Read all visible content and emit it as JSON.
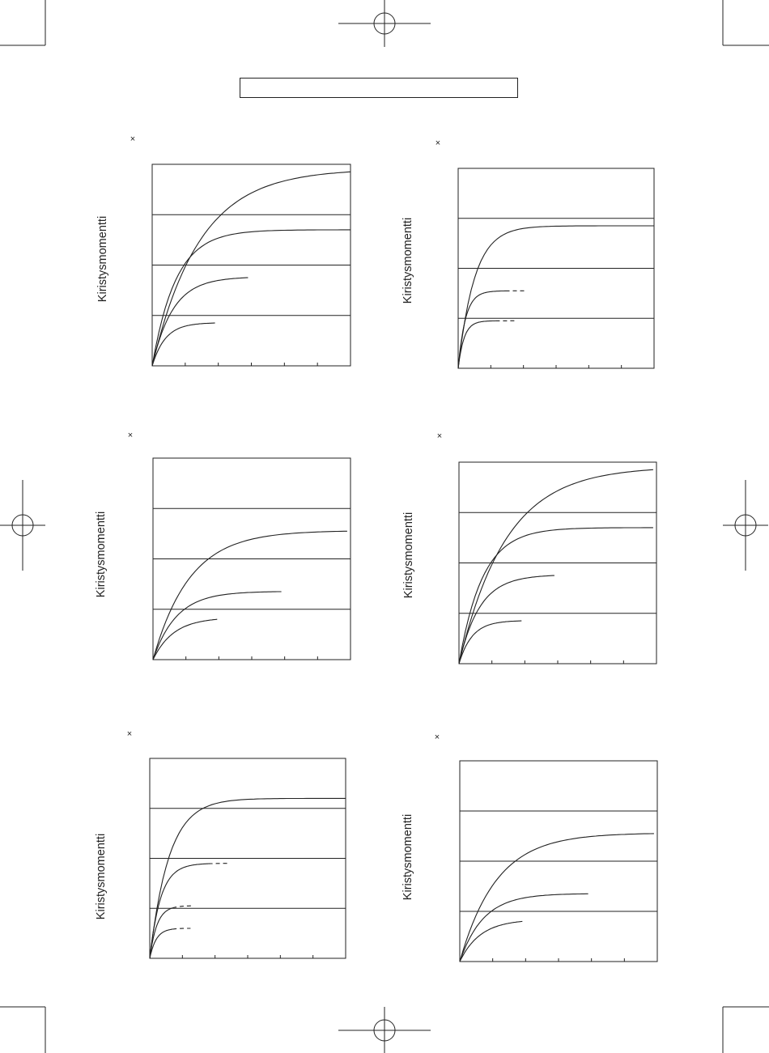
{
  "page": {
    "title_box_text": "",
    "colors": {
      "ink": "#222222",
      "background": "#ffffff"
    }
  },
  "chart_data": [
    {
      "type": "line",
      "position": "top-left",
      "ylabel": "Kiristysmomentti",
      "multiplier_mark": "×",
      "xlim": [
        0,
        6
      ],
      "ylim": [
        0,
        4
      ],
      "grid": "horizontal",
      "series": [
        {
          "x_end": 6.0,
          "y_end": 3.85,
          "k": 0.7,
          "dashed_from": null
        },
        {
          "x_end": 6.0,
          "y_end": 2.7,
          "k": 1.4,
          "dashed_from": null
        },
        {
          "x_end": 2.9,
          "y_end": 1.75,
          "k": 1.6,
          "dashed_from": null
        },
        {
          "x_end": 1.9,
          "y_end": 0.85,
          "k": 2.5,
          "dashed_from": null
        }
      ]
    },
    {
      "type": "line",
      "position": "top-right",
      "ylabel": "Kiristysmomentti",
      "multiplier_mark": "×",
      "xlim": [
        0,
        6
      ],
      "ylim": [
        0,
        4
      ],
      "grid": "horizontal",
      "series": [
        {
          "x_end": 6.0,
          "y_end": 2.85,
          "k": 2.0,
          "dashed_from": null
        },
        {
          "x_end": 2.1,
          "y_end": 1.55,
          "k": 4.5,
          "dashed_from": 1.45
        },
        {
          "x_end": 1.8,
          "y_end": 0.95,
          "k": 5.5,
          "dashed_from": 1.15
        }
      ]
    },
    {
      "type": "line",
      "position": "middle-left",
      "ylabel": "Kiristysmomentti",
      "multiplier_mark": "×",
      "xlim": [
        0,
        6
      ],
      "ylim": [
        0,
        4
      ],
      "grid": "horizontal",
      "series": [
        {
          "x_end": 5.9,
          "y_end": 2.55,
          "k": 0.9,
          "dashed_from": null
        },
        {
          "x_end": 3.9,
          "y_end": 1.35,
          "k": 1.4,
          "dashed_from": null
        },
        {
          "x_end": 1.95,
          "y_end": 0.8,
          "k": 1.6,
          "dashed_from": null
        }
      ]
    },
    {
      "type": "line",
      "position": "middle-right",
      "ylabel": "Kiristysmomentti",
      "multiplier_mark": "×",
      "xlim": [
        0,
        6
      ],
      "ylim": [
        0,
        4
      ],
      "grid": "horizontal",
      "series": [
        {
          "x_end": 5.9,
          "y_end": 3.85,
          "k": 0.7,
          "dashed_from": null
        },
        {
          "x_end": 5.9,
          "y_end": 2.7,
          "k": 1.4,
          "dashed_from": null
        },
        {
          "x_end": 2.9,
          "y_end": 1.75,
          "k": 1.6,
          "dashed_from": null
        },
        {
          "x_end": 1.9,
          "y_end": 0.85,
          "k": 2.5,
          "dashed_from": null
        }
      ]
    },
    {
      "type": "line",
      "position": "bottom-left",
      "ylabel": "Kiristysmomentti",
      "multiplier_mark": "×",
      "xlim": [
        0,
        6
      ],
      "ylim": [
        0,
        4
      ],
      "grid": "horizontal",
      "series": [
        {
          "x_end": 6.0,
          "y_end": 3.2,
          "k": 1.7,
          "dashed_from": null
        },
        {
          "x_end": 2.4,
          "y_end": 1.9,
          "k": 3.0,
          "dashed_from": 1.8
        },
        {
          "x_end": 1.3,
          "y_end": 1.05,
          "k": 4.5,
          "dashed_from": 0.7
        },
        {
          "x_end": 1.25,
          "y_end": 0.6,
          "k": 5.0,
          "dashed_from": 0.7
        }
      ]
    },
    {
      "type": "line",
      "position": "bottom-right",
      "ylabel": "Kiristysmomentti",
      "multiplier_mark": "×",
      "xlim": [
        0,
        6
      ],
      "ylim": [
        0,
        4
      ],
      "grid": "horizontal",
      "series": [
        {
          "x_end": 5.9,
          "y_end": 2.55,
          "k": 0.9,
          "dashed_from": null
        },
        {
          "x_end": 3.9,
          "y_end": 1.35,
          "k": 1.4,
          "dashed_from": null
        },
        {
          "x_end": 1.9,
          "y_end": 0.8,
          "k": 1.6,
          "dashed_from": null
        }
      ]
    }
  ]
}
